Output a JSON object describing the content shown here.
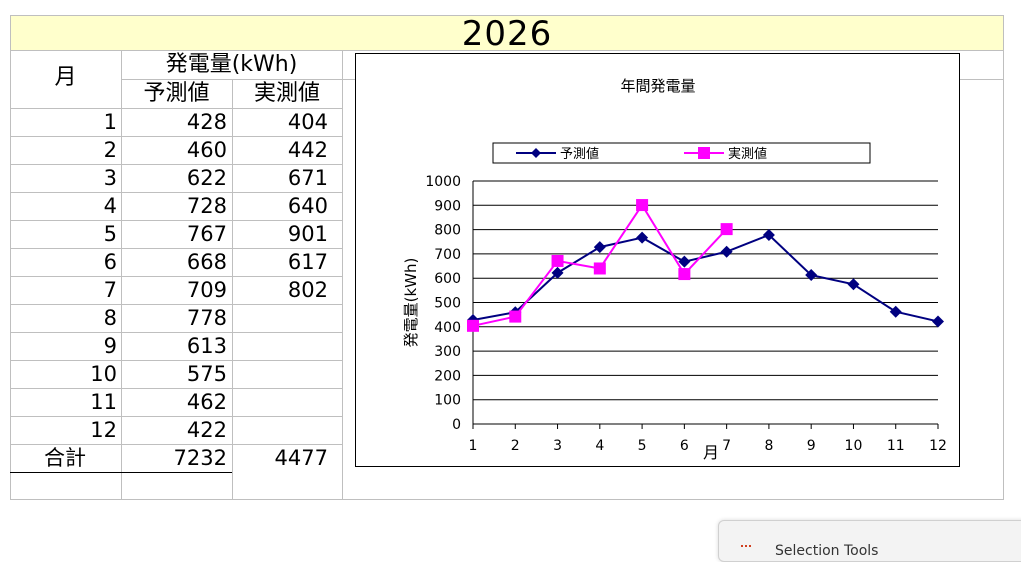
{
  "sheet": {
    "year_title": "2026",
    "col_month_header": "月",
    "generation_header": "発電量(kWh)",
    "forecast_header": "予測値",
    "actual_header": "実測値",
    "rows": [
      {
        "month": "1",
        "forecast": "428",
        "actual": "404"
      },
      {
        "month": "2",
        "forecast": "460",
        "actual": "442"
      },
      {
        "month": "3",
        "forecast": "622",
        "actual": "671"
      },
      {
        "month": "4",
        "forecast": "728",
        "actual": "640"
      },
      {
        "month": "5",
        "forecast": "767",
        "actual": "901"
      },
      {
        "month": "6",
        "forecast": "668",
        "actual": "617"
      },
      {
        "month": "7",
        "forecast": "709",
        "actual": "802"
      },
      {
        "month": "8",
        "forecast": "778",
        "actual": ""
      },
      {
        "month": "9",
        "forecast": "613",
        "actual": ""
      },
      {
        "month": "10",
        "forecast": "575",
        "actual": ""
      },
      {
        "month": "11",
        "forecast": "462",
        "actual": ""
      },
      {
        "month": "12",
        "forecast": "422",
        "actual": ""
      }
    ],
    "total_label": "合計",
    "total_forecast": "7232",
    "total_actual": "4477"
  },
  "chart_data": {
    "type": "line",
    "title": "年間発電量",
    "xlabel": "月",
    "ylabel": "発電量(kWh)",
    "x": [
      1,
      2,
      3,
      4,
      5,
      6,
      7,
      8,
      9,
      10,
      11,
      12
    ],
    "ylim": [
      0,
      1000
    ],
    "yticks": [
      0,
      100,
      200,
      300,
      400,
      500,
      600,
      700,
      800,
      900,
      1000
    ],
    "grid": true,
    "legend_position": "top",
    "series": [
      {
        "name": "予測値",
        "color": "#000080",
        "marker": "diamond",
        "values": [
          428,
          460,
          622,
          728,
          767,
          668,
          709,
          778,
          613,
          575,
          462,
          422
        ]
      },
      {
        "name": "実測値",
        "color": "#ff00ff",
        "marker": "square",
        "values": [
          404,
          442,
          671,
          640,
          901,
          617,
          802,
          null,
          null,
          null,
          null,
          null
        ]
      }
    ]
  },
  "popup": {
    "text": "Selection Tools"
  }
}
